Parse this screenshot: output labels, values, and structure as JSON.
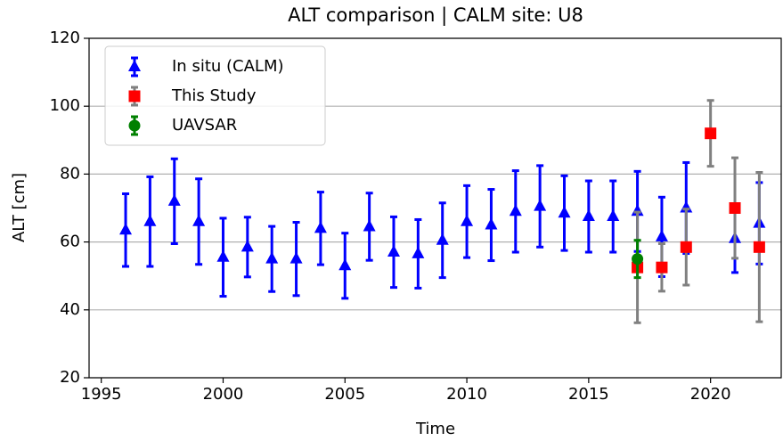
{
  "chart_data": {
    "type": "errorbar",
    "title": "ALT comparison | CALM site: U8",
    "x_label": "Time",
    "y_label": "ALT [cm]",
    "xlim": [
      1994.5,
      2022.9
    ],
    "xticks": [
      1995,
      2000,
      2005,
      2010,
      2015,
      2020
    ],
    "ylim": [
      20,
      120
    ],
    "yticks": [
      20,
      40,
      60,
      80,
      100,
      120
    ],
    "grid": "y",
    "legend": "upper left",
    "series": [
      {
        "name": "In situ (CALM)",
        "color": "#0000ff",
        "error_color": "#0000ff",
        "marker": "triangle",
        "x": [
          1996,
          1997,
          1998,
          1999,
          2000,
          2001,
          2002,
          2003,
          2004,
          2005,
          2006,
          2007,
          2008,
          2009,
          2010,
          2011,
          2012,
          2013,
          2014,
          2015,
          2016,
          2017,
          2018,
          2019,
          2021,
          2022
        ],
        "values": [
          63.5,
          66,
          72,
          66,
          55.5,
          58.5,
          55,
          55,
          64,
          53,
          64.5,
          57,
          56.5,
          60.5,
          66,
          65,
          69,
          70.5,
          68.5,
          67.5,
          67.5,
          69,
          61.5,
          70,
          61,
          65.5
        ],
        "errors": [
          10.7,
          13.2,
          12.5,
          12.6,
          11.5,
          8.8,
          9.6,
          10.8,
          10.7,
          9.6,
          9.9,
          10.4,
          10.1,
          11,
          10.6,
          10.5,
          12,
          12,
          11,
          10.5,
          10.5,
          11.8,
          11.7,
          13.4,
          10,
          12
        ]
      },
      {
        "name": "This Study",
        "color": "#ff0000",
        "error_color": "#808080",
        "marker": "square",
        "x": [
          2017,
          2018,
          2019,
          2020,
          2021,
          2022
        ],
        "values": [
          52.5,
          52.5,
          58.5,
          92,
          70,
          58.5
        ],
        "errors": [
          16.3,
          7,
          11.2,
          9.7,
          14.8,
          22
        ]
      },
      {
        "name": "UAVSAR",
        "color": "#008000",
        "error_color": "#008000",
        "marker": "circle",
        "x": [
          2017
        ],
        "values": [
          55
        ],
        "errors": [
          5.5
        ]
      }
    ]
  }
}
